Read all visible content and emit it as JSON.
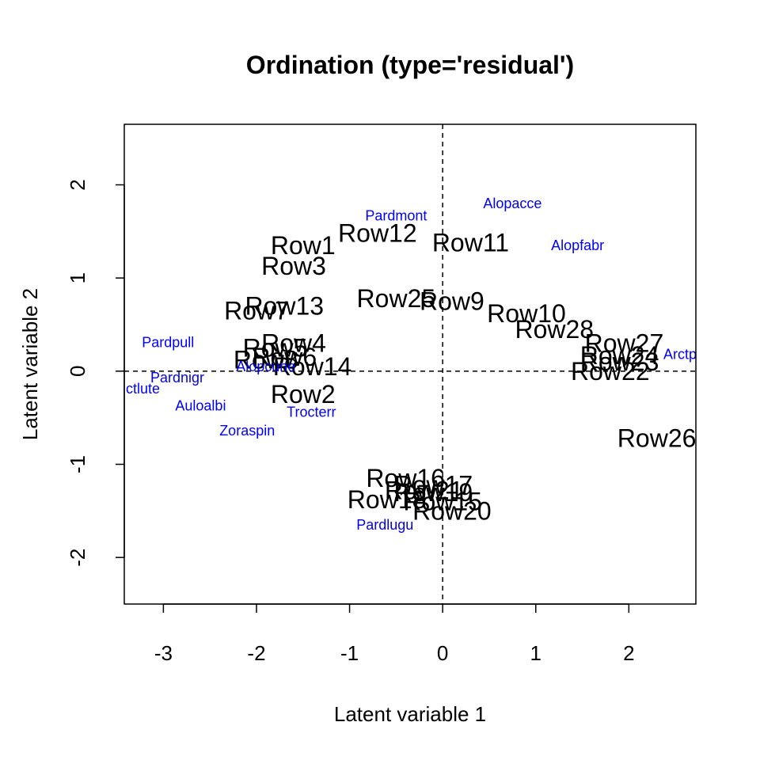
{
  "chart_data": {
    "type": "scatter",
    "title": "Ordination (type='residual')",
    "xlabel": "Latent variable 1",
    "ylabel": "Latent variable 2",
    "xlim": [
      -3.42,
      2.72
    ],
    "ylim": [
      -2.5,
      2.65
    ],
    "x_ticks": [
      -3,
      -2,
      -1,
      0,
      1,
      2
    ],
    "y_ticks": [
      -2,
      -1,
      0,
      1,
      2
    ],
    "reference_lines": {
      "x": 0,
      "y": 0,
      "style": "dashed"
    },
    "grid": false,
    "colors": {
      "sites": "#000000",
      "species": "#0000ff"
    },
    "sites": [
      {
        "label": "Row1",
        "x": -1.5,
        "y": 1.35
      },
      {
        "label": "Row2",
        "x": -1.5,
        "y": -0.25
      },
      {
        "label": "Row3",
        "x": -1.6,
        "y": 1.13
      },
      {
        "label": "Row4",
        "x": -1.6,
        "y": 0.3
      },
      {
        "label": "Row5",
        "x": -1.8,
        "y": 0.25
      },
      {
        "label": "Row6",
        "x": -1.7,
        "y": 0.15
      },
      {
        "label": "Row7",
        "x": -2.0,
        "y": 0.65
      },
      {
        "label": "Row8",
        "x": -1.9,
        "y": 0.12
      },
      {
        "label": "Row9",
        "x": 0.1,
        "y": 0.75
      },
      {
        "label": "Row10",
        "x": 0.9,
        "y": 0.62
      },
      {
        "label": "Row11",
        "x": 0.3,
        "y": 1.38
      },
      {
        "label": "Row12",
        "x": -0.7,
        "y": 1.48
      },
      {
        "label": "Row13",
        "x": -1.7,
        "y": 0.7
      },
      {
        "label": "Row14",
        "x": -1.4,
        "y": 0.05
      },
      {
        "label": "Row15",
        "x": 0.0,
        "y": -1.4
      },
      {
        "label": "Row16",
        "x": -0.4,
        "y": -1.15
      },
      {
        "label": "Row17",
        "x": -0.1,
        "y": -1.22
      },
      {
        "label": "Row18",
        "x": -0.6,
        "y": -1.38
      },
      {
        "label": "Row19",
        "x": -0.1,
        "y": -1.3
      },
      {
        "label": "Row20",
        "x": 0.1,
        "y": -1.5
      },
      {
        "label": "Row21",
        "x": -0.2,
        "y": -1.28
      },
      {
        "label": "Row22",
        "x": 1.8,
        "y": 0.0
      },
      {
        "label": "Row23",
        "x": 1.9,
        "y": 0.1
      },
      {
        "label": "Row24",
        "x": 1.9,
        "y": 0.17
      },
      {
        "label": "Row25",
        "x": -0.5,
        "y": 0.78
      },
      {
        "label": "Row26",
        "x": 2.3,
        "y": -0.72
      },
      {
        "label": "Row27",
        "x": 1.95,
        "y": 0.3
      },
      {
        "label": "Row28",
        "x": 1.2,
        "y": 0.45
      }
    ],
    "species": [
      {
        "label": "Pardmont",
        "x": -0.5,
        "y": 1.67
      },
      {
        "label": "Alopacce",
        "x": 0.75,
        "y": 1.8
      },
      {
        "label": "Alopfabr",
        "x": 1.45,
        "y": 1.35
      },
      {
        "label": "Pardpull",
        "x": -2.95,
        "y": 0.31
      },
      {
        "label": "Arctp",
        "x": 2.55,
        "y": 0.18
      },
      {
        "label": "Alopcune",
        "x": -1.9,
        "y": 0.05
      },
      {
        "label": "Pardnigr",
        "x": -2.85,
        "y": -0.07
      },
      {
        "label": "ctlute",
        "x": -3.22,
        "y": -0.19
      },
      {
        "label": "Auloalbi",
        "x": -2.6,
        "y": -0.37
      },
      {
        "label": "Trocterr",
        "x": -1.41,
        "y": -0.44
      },
      {
        "label": "Zoraspin",
        "x": -2.1,
        "y": -0.64
      },
      {
        "label": "Pardlugu",
        "x": -0.62,
        "y": -1.65
      }
    ]
  }
}
